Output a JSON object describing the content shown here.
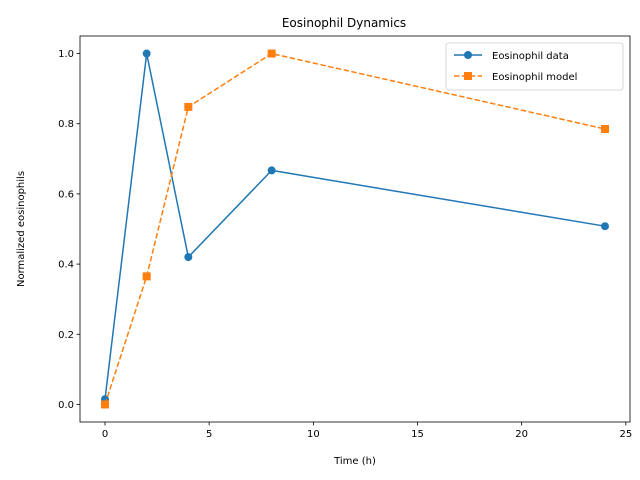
{
  "chart_data": {
    "type": "line",
    "title": "Eosinophil Dynamics",
    "xlabel": "Time (h)",
    "ylabel": "Normalized eosinophils",
    "xlim": [
      -1.2,
      25.2
    ],
    "ylim": [
      -0.05,
      1.05
    ],
    "xticks": [
      0,
      5,
      10,
      15,
      20,
      25
    ],
    "xtick_labels": [
      "0",
      "5",
      "10",
      "15",
      "20",
      "25"
    ],
    "yticks": [
      0.0,
      0.2,
      0.4,
      0.6,
      0.8,
      1.0
    ],
    "ytick_labels": [
      "0.0",
      "0.2",
      "0.4",
      "0.6",
      "0.8",
      "1.0"
    ],
    "grid": false,
    "legend_position": "top-right",
    "series": [
      {
        "name": "Eosinophil data",
        "color": "#1f77b4",
        "line_style": "solid",
        "marker": "circle",
        "x": [
          0,
          2,
          4,
          8,
          24
        ],
        "y": [
          0.015,
          1.0,
          0.42,
          0.667,
          0.508
        ]
      },
      {
        "name": "Eosinophil model",
        "color": "#ff7f0e",
        "line_style": "dashed",
        "marker": "square",
        "x": [
          0,
          2,
          4,
          8,
          24
        ],
        "y": [
          0.0,
          0.365,
          0.848,
          1.0,
          0.785
        ]
      }
    ]
  }
}
